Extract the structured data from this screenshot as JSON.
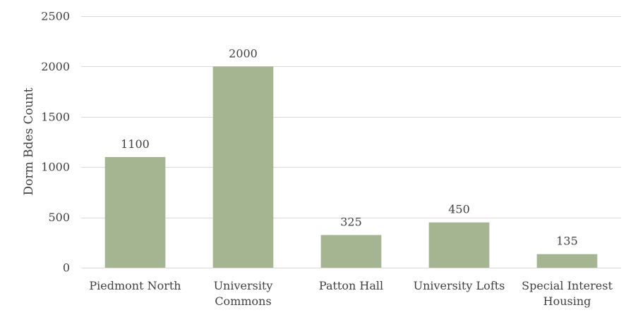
{
  "chart_data": {
    "type": "bar",
    "title": "",
    "xlabel": "",
    "ylabel": "Dorm Bdes Count",
    "ylim": [
      0,
      2500
    ],
    "yticks": [
      0,
      500,
      1000,
      1500,
      2000,
      2500
    ],
    "grid": true,
    "legend": "none",
    "bar_color": "#a5b592",
    "categories": [
      [
        "Piedmont North"
      ],
      [
        "University",
        "Commons"
      ],
      [
        "Patton Hall"
      ],
      [
        "University Lofts"
      ],
      [
        "Special Interest",
        "Housing"
      ]
    ],
    "values": [
      1100,
      2000,
      325,
      450,
      135
    ],
    "data_labels": [
      "1100",
      "2000",
      "325",
      "450",
      "135"
    ]
  }
}
